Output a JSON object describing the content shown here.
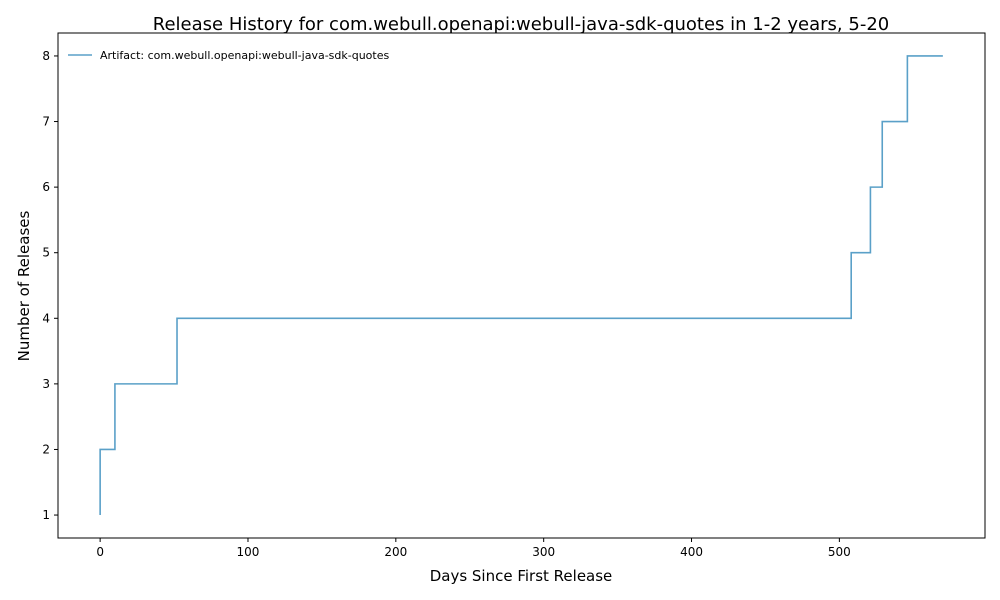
{
  "chart_data": {
    "type": "line",
    "drawstyle": "steps-post",
    "title": "Release History for com.webull.openapi:webull-java-sdk-quotes in 1-2 years, 5-20",
    "xlabel": "Days Since First Release",
    "ylabel": "Number of Releases",
    "xlim": [
      -28.5,
      598.5
    ],
    "ylim": [
      0.65,
      8.35
    ],
    "xticks": [
      0,
      100,
      200,
      300,
      400,
      500
    ],
    "yticks": [
      1,
      2,
      3,
      4,
      5,
      6,
      7,
      8
    ],
    "grid": false,
    "legend_position": "top-left",
    "series": [
      {
        "name": "Artifact: com.webull.openapi:webull-java-sdk-quotes",
        "color": "#5aa0c8",
        "x": [
          0,
          0,
          10,
          52,
          508,
          521,
          529,
          546,
          570
        ],
        "y": [
          1,
          2,
          3,
          4,
          5,
          6,
          7,
          8,
          8
        ]
      }
    ]
  }
}
